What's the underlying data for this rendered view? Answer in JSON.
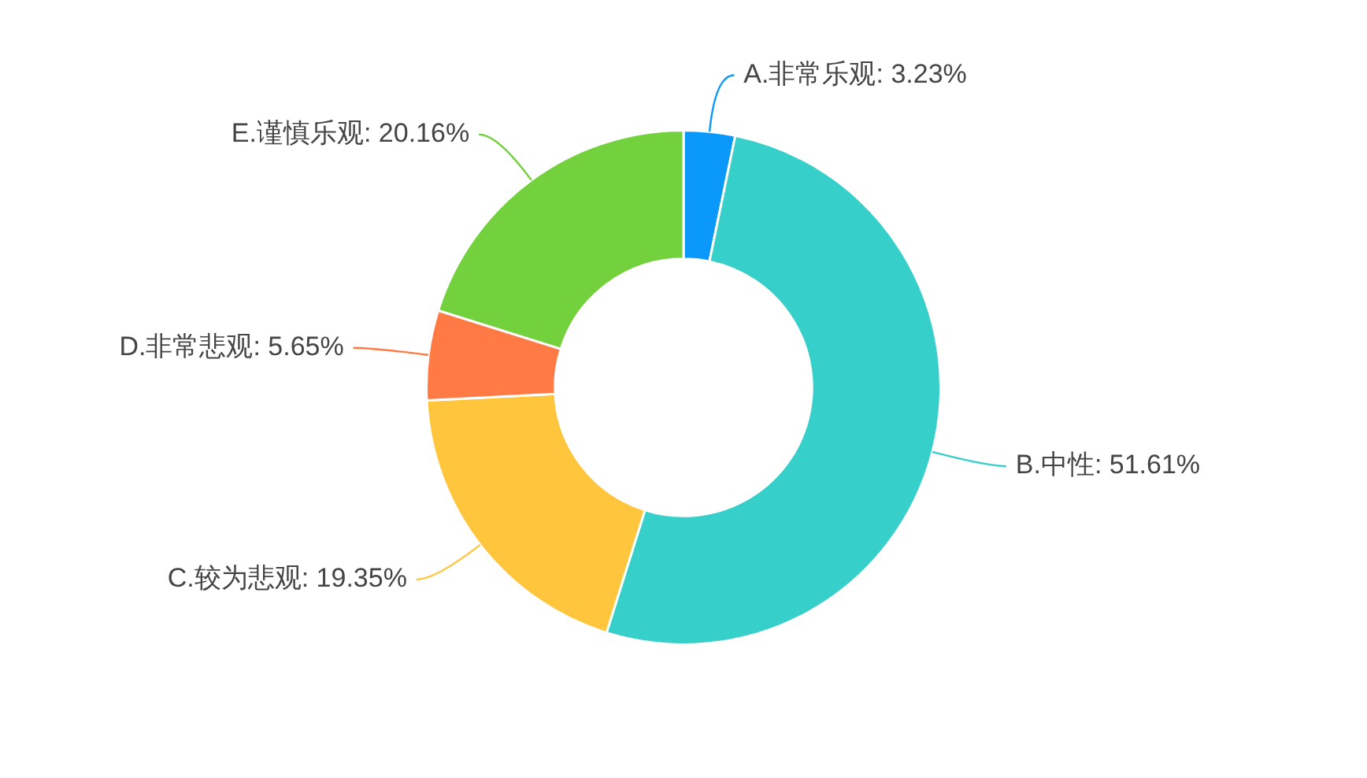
{
  "chart_data": {
    "type": "donut",
    "categories": [
      "A.非常乐观",
      "B.中性",
      "C.较为悲观",
      "D.非常悲观",
      "E.谨慎乐观"
    ],
    "values": [
      3.23,
      51.61,
      19.35,
      5.65,
      20.16
    ],
    "value_labels": [
      "3.23%",
      "51.61%",
      "19.35%",
      "5.65%",
      "20.16%"
    ],
    "colors": [
      "#0a98fb",
      "#36cfc9",
      "#ffc53d",
      "#ff7a45",
      "#73d13d"
    ],
    "legend": false
  }
}
